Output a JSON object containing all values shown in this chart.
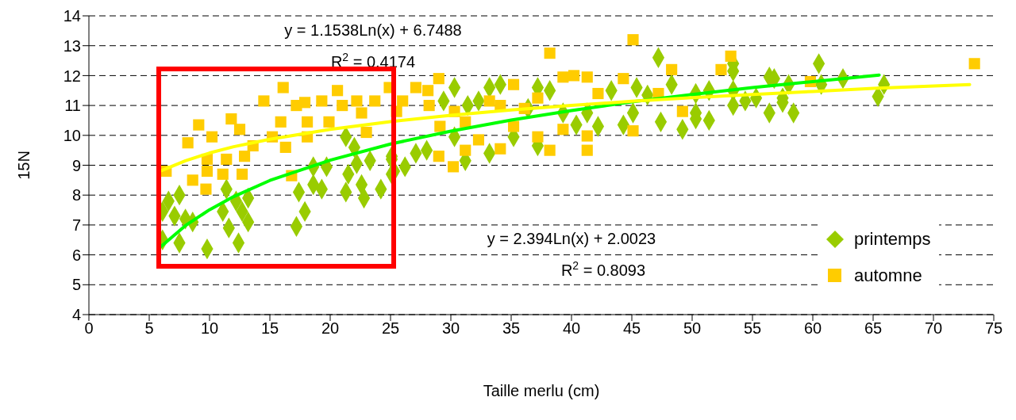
{
  "chart_data": {
    "type": "scatter",
    "xlabel": "Taille merlu (cm)",
    "ylabel": "15N",
    "xlim": [
      0,
      75
    ],
    "xticks": [
      0,
      5,
      10,
      15,
      20,
      25,
      30,
      35,
      40,
      45,
      50,
      55,
      60,
      65,
      70,
      75
    ],
    "ylim": [
      4,
      14
    ],
    "yticks": [
      4,
      5,
      6,
      7,
      8,
      9,
      10,
      11,
      12,
      13,
      14
    ],
    "grid": "y",
    "legend": "bottom right",
    "annotations": [
      "y = 1.1538Ln(x) + 6.7488",
      "R$^{2}$ = 0.4174",
      "y = 2.394Ln(x) + 2.0023",
      "R$^{2}$ = 0.8093"
    ],
    "series": [
      {
        "name": "printemps",
        "marker": "diamond",
        "color": "#99cc00",
        "x": [
          6.1,
          6.6,
          7.5,
          7.1,
          8.0,
          6.1,
          7.5,
          8.6,
          9.8,
          11.4,
          12.2,
          11.1,
          12.7,
          13.2,
          11.6,
          12.4,
          13.2,
          17.2,
          17.4,
          18.6,
          17.9,
          19.3,
          18.6,
          19.7,
          21.3,
          22.0,
          21.5,
          21.3,
          22.6,
          22.8,
          22.2,
          23.3,
          24.2,
          25.1,
          25.3,
          25.1,
          26.2,
          25.1,
          27.1,
          28.0,
          29.4,
          30.3,
          30.3,
          31.2,
          31.4,
          32.3,
          33.2,
          33.2,
          34.1,
          35.2,
          36.4,
          37.2,
          37.2,
          38.2,
          39.3,
          40.4,
          41.3,
          42.2,
          43.3,
          44.3,
          45.1,
          45.4,
          47.2,
          47.4,
          48.3,
          49.2,
          50.3,
          46.3,
          50.3,
          51.4,
          50.3,
          51.4,
          53.4,
          53.4,
          53.4,
          53.4,
          54.4,
          55.3,
          56.4,
          56.8,
          56.4,
          57.5,
          57.5,
          58.4,
          58.0,
          60.5,
          60.7,
          62.5,
          65.4,
          65.9
        ],
        "values": [
          7.45,
          7.8,
          8.0,
          7.3,
          7.2,
          6.5,
          6.4,
          7.1,
          6.2,
          8.2,
          7.8,
          7.45,
          7.45,
          7.1,
          6.9,
          6.4,
          7.9,
          6.95,
          8.1,
          8.35,
          7.45,
          8.2,
          8.95,
          8.95,
          9.95,
          9.6,
          8.7,
          8.1,
          8.35,
          7.9,
          9.05,
          9.15,
          8.2,
          9.2,
          8.8,
          8.7,
          8.95,
          9.3,
          9.4,
          9.5,
          11.15,
          11.6,
          9.95,
          9.15,
          11.0,
          11.15,
          9.4,
          11.6,
          11.7,
          9.95,
          10.9,
          11.6,
          9.65,
          11.5,
          10.75,
          10.35,
          10.75,
          10.3,
          11.5,
          10.35,
          10.75,
          11.6,
          12.6,
          10.45,
          11.7,
          10.2,
          10.75,
          11.35,
          11.4,
          11.5,
          10.55,
          10.5,
          12.4,
          12.15,
          11.0,
          11.5,
          11.15,
          11.25,
          11.95,
          11.9,
          10.75,
          11.25,
          11.1,
          10.75,
          11.7,
          12.4,
          11.7,
          11.9,
          11.3,
          11.7
        ]
      },
      {
        "name": "automne",
        "marker": "square",
        "color": "#ffcc00",
        "x": [
          6.4,
          8.6,
          9.7,
          9.8,
          11.1,
          12.7,
          8.2,
          9.1,
          10.2,
          9.8,
          11.4,
          11.8,
          12.5,
          12.9,
          13.6,
          14.5,
          15.2,
          15.9,
          16.1,
          16.3,
          16.8,
          17.2,
          17.9,
          18.1,
          18.1,
          19.3,
          19.9,
          20.6,
          21.0,
          22.2,
          22.6,
          23.0,
          23.7,
          24.9,
          25.5,
          26.0,
          27.1,
          28.1,
          29.0,
          28.2,
          29.1,
          29.0,
          30.2,
          30.3,
          31.2,
          31.2,
          32.3,
          33.2,
          34.1,
          34.1,
          35.2,
          35.2,
          36.1,
          37.2,
          37.2,
          38.2,
          38.2,
          39.3,
          39.3,
          40.2,
          41.3,
          41.3,
          41.3,
          42.2,
          44.3,
          45.1,
          45.1,
          47.2,
          48.3,
          49.2,
          52.4,
          53.2,
          59.8,
          73.4
        ],
        "values": [
          8.8,
          8.5,
          8.2,
          8.8,
          8.7,
          8.7,
          9.75,
          10.35,
          9.95,
          9.2,
          9.2,
          10.55,
          10.2,
          9.3,
          9.65,
          11.15,
          9.95,
          10.45,
          11.6,
          9.6,
          8.65,
          11.0,
          11.1,
          10.45,
          9.95,
          11.15,
          10.45,
          11.5,
          11.0,
          11.15,
          10.75,
          10.1,
          11.15,
          11.6,
          10.8,
          11.15,
          11.6,
          11.5,
          11.9,
          11.0,
          10.3,
          9.3,
          8.95,
          10.8,
          10.45,
          9.5,
          9.85,
          11.15,
          11.0,
          9.55,
          11.7,
          10.3,
          10.9,
          11.25,
          9.95,
          12.75,
          9.5,
          11.95,
          10.2,
          12.0,
          11.95,
          9.98,
          9.5,
          11.4,
          11.9,
          13.2,
          10.15,
          11.4,
          12.2,
          10.8,
          12.2,
          12.65,
          11.8,
          12.4
        ]
      },
      {
        "type": "line",
        "marker": "none",
        "line_style": "solid",
        "color": "#00ff00",
        "x": [
          6,
          8,
          10,
          12,
          15,
          20,
          25,
          30,
          35,
          40,
          45,
          50,
          55,
          60,
          65.5
        ],
        "values": [
          6.29,
          6.98,
          7.51,
          7.95,
          8.49,
          9.17,
          9.71,
          10.14,
          10.51,
          10.83,
          11.12,
          11.37,
          11.6,
          11.8,
          12.02
        ]
      },
      {
        "type": "line",
        "marker": "none",
        "line_style": "solid",
        "color": "#ffff00",
        "x": [
          6,
          8,
          10,
          12,
          15,
          20,
          25,
          30,
          35,
          40,
          45,
          50,
          55,
          60,
          65,
          73
        ],
        "values": [
          8.82,
          9.15,
          9.41,
          9.62,
          9.87,
          10.2,
          10.46,
          10.67,
          10.85,
          11.0,
          11.14,
          11.26,
          11.37,
          11.47,
          11.57,
          11.7
        ]
      }
    ]
  }
}
